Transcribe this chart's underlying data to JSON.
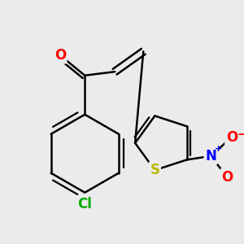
{
  "bg_color": "#ebebeb",
  "bond_color": "#000000",
  "bond_width": 1.8,
  "atom_colors": {
    "O": "#ff0000",
    "N": "#0000ff",
    "S": "#b8b800",
    "Cl": "#00aa00",
    "C": "#000000"
  }
}
